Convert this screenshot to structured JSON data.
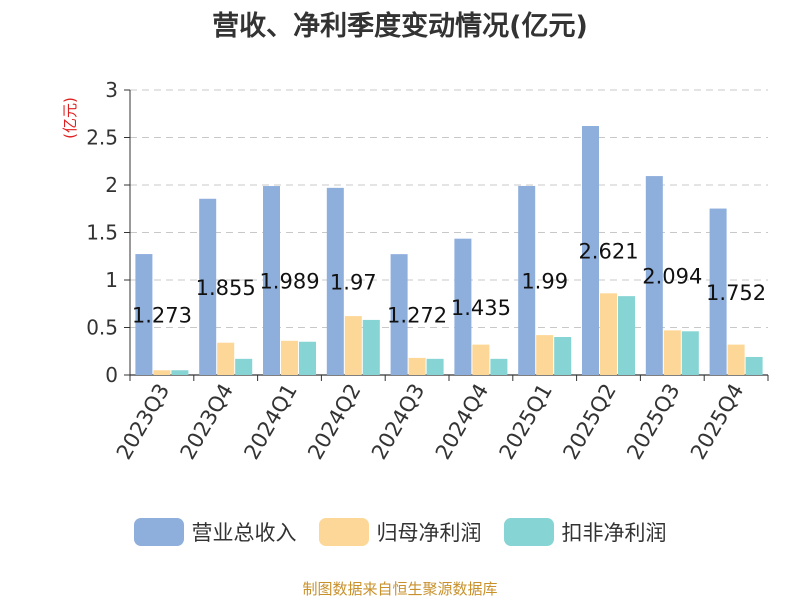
{
  "chart_data": {
    "type": "bar",
    "title": "营收、净利季度变动情况(亿元)",
    "ylabel": "(亿元)",
    "xlabel": "",
    "categories": [
      "2023Q3",
      "2023Q4",
      "2024Q1",
      "2024Q2",
      "2024Q3",
      "2024Q4",
      "2025Q1",
      "2025Q2",
      "2025Q3",
      "2025Q4"
    ],
    "series": [
      {
        "name": "营业总收入",
        "color": "#8eaedc",
        "values": [
          1.273,
          1.855,
          1.989,
          1.97,
          1.272,
          1.435,
          1.99,
          2.621,
          2.094,
          1.752
        ]
      },
      {
        "name": "归母净利润",
        "color": "#fdd797",
        "values": [
          0.05,
          0.34,
          0.36,
          0.62,
          0.18,
          0.32,
          0.42,
          0.86,
          0.47,
          0.32
        ]
      },
      {
        "name": "扣非净利润",
        "color": "#86d4d4",
        "values": [
          0.05,
          0.17,
          0.35,
          0.58,
          0.17,
          0.17,
          0.4,
          0.83,
          0.46,
          0.19
        ]
      }
    ],
    "data_labels": [
      "1.273",
      "1.855",
      "1.989",
      "1.97",
      "1.272",
      "1.435",
      "1.99",
      "2.621",
      "2.094",
      "1.752"
    ],
    "ylim": [
      0,
      3
    ],
    "yticks": [
      "0",
      "0.5",
      "1",
      "1.5",
      "2",
      "2.5",
      "3"
    ],
    "grid": true,
    "legend_position": "bottom"
  },
  "source": "制图数据来自恒生聚源数据库"
}
